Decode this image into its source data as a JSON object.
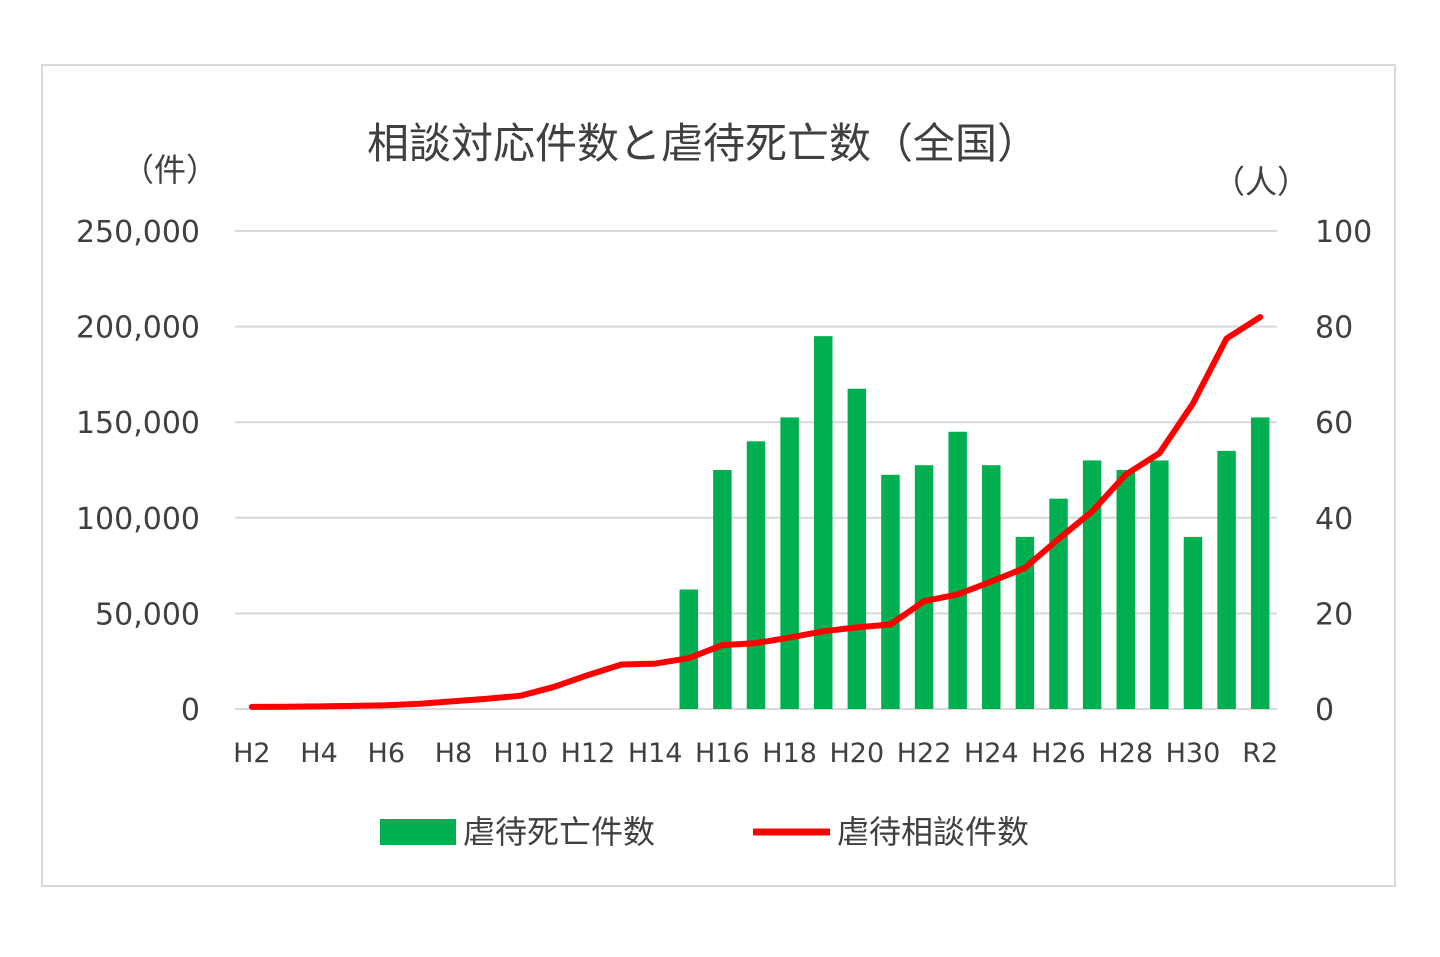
{
  "chart_data": {
    "type": "bar+line",
    "title": "相談対応件数と虐待死亡数（全国）",
    "left_axis_unit": "（件）",
    "right_axis_unit": "（人）",
    "left_ylim": [
      0,
      250000
    ],
    "right_ylim": [
      0,
      100
    ],
    "left_ticks": [
      "250,000",
      "200,000",
      "150,000",
      "100,000",
      "50,000",
      "0"
    ],
    "right_ticks": [
      "100",
      "80",
      "60",
      "40",
      "20",
      "0"
    ],
    "left_tick_values": [
      250000,
      200000,
      150000,
      100000,
      50000,
      0
    ],
    "right_tick_values": [
      100,
      80,
      60,
      40,
      20,
      0
    ],
    "categories": [
      "H2",
      "H3",
      "H4",
      "H5",
      "H6",
      "H7",
      "H8",
      "H9",
      "H10",
      "H11",
      "H12",
      "H13",
      "H14",
      "H15",
      "H16",
      "H17",
      "H18",
      "H19",
      "H20",
      "H21",
      "H22",
      "H23",
      "H24",
      "H25",
      "H26",
      "H27",
      "H28",
      "H29",
      "H30",
      "R1",
      "R2"
    ],
    "x_tick_labels": [
      "H2",
      "",
      "H4",
      "",
      "H6",
      "",
      "H8",
      "",
      "H10",
      "",
      "H12",
      "",
      "H14",
      "",
      "H16",
      "",
      "H18",
      "",
      "H20",
      "",
      "H22",
      "",
      "H24",
      "",
      "H26",
      "",
      "H28",
      "",
      "H30",
      "",
      "R2"
    ],
    "grid": true,
    "legend_position": "bottom",
    "series": [
      {
        "name": "虐待死亡件数",
        "kind": "bar",
        "axis": "right",
        "color": "#00b050",
        "values": [
          null,
          null,
          null,
          null,
          null,
          null,
          null,
          null,
          null,
          null,
          null,
          null,
          null,
          25,
          50,
          56,
          61,
          78,
          67,
          49,
          51,
          58,
          51,
          36,
          44,
          52,
          50,
          52,
          36,
          54,
          61
        ]
      },
      {
        "name": "虐待相談件数",
        "kind": "line",
        "axis": "left",
        "color": "#ff0000",
        "values": [
          1101,
          1171,
          1372,
          1611,
          1961,
          2722,
          4102,
          5352,
          6932,
          11631,
          17725,
          23274,
          23738,
          26569,
          33408,
          34472,
          37323,
          40639,
          42664,
          44211,
          56384,
          59919,
          66701,
          73802,
          88931,
          103286,
          122575,
          133778,
          159838,
          193780,
          205044
        ]
      }
    ]
  }
}
